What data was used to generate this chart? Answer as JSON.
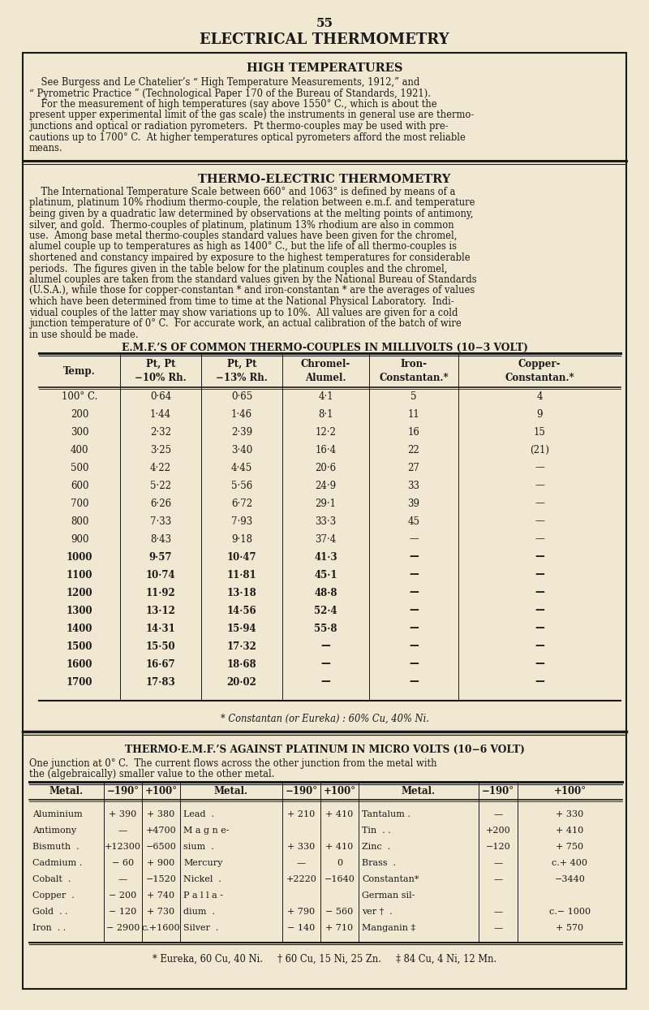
{
  "bg_color": "#f0e8d0",
  "page_num": "55",
  "page_title": "ELECTRICAL THERMOMETRY",
  "section1_title": "HIGH TEMPERATURES",
  "section2_title": "THERMO-ELECTRIC THERMOMETRY",
  "table1_title": "E.M.F.’S OF COMMON THERMO-COUPLES IN MILLIVOLTS (10−3 VOLT)",
  "table1_headers": [
    "Temp.",
    "Pt, Pt\n−10% Rh.",
    "Pt, Pt\n−13% Rh.",
    "Chromel-\nAlumel.",
    "Iron-\nConstantan.*",
    "Copper-\nConstantan.*"
  ],
  "table1_data": [
    [
      "100° C.",
      "0·64",
      "0·65",
      "4·1",
      "5",
      "4"
    ],
    [
      "200",
      "1·44",
      "1·46",
      "8·1",
      "11",
      "9"
    ],
    [
      "300",
      "2·32",
      "2·39",
      "12·2",
      "16",
      "15"
    ],
    [
      "400",
      "3·25",
      "3·40",
      "16·4",
      "22",
      "(21)"
    ],
    [
      "500",
      "4·22",
      "4·45",
      "20·6",
      "27",
      "—"
    ],
    [
      "600",
      "5·22",
      "5·56",
      "24·9",
      "33",
      "—"
    ],
    [
      "700",
      "6·26",
      "6·72",
      "29·1",
      "39",
      "—"
    ],
    [
      "800",
      "7·33",
      "7·93",
      "33·3",
      "45",
      "—"
    ],
    [
      "900",
      "8·43",
      "9·18",
      "37·4",
      "—",
      "—"
    ],
    [
      "1000",
      "9·57",
      "10·47",
      "41·3",
      "—",
      "—"
    ],
    [
      "1100",
      "10·74",
      "11·81",
      "45·1",
      "—",
      "—"
    ],
    [
      "1200",
      "11·92",
      "13·18",
      "48·8",
      "—",
      "—"
    ],
    [
      "1300",
      "13·12",
      "14·56",
      "52·4",
      "—",
      "—"
    ],
    [
      "1400",
      "14·31",
      "15·94",
      "55·8",
      "—",
      "—"
    ],
    [
      "1500",
      "15·50",
      "17·32",
      "—",
      "—",
      "—"
    ],
    [
      "1600",
      "16·67",
      "18·68",
      "—",
      "—",
      "—"
    ],
    [
      "1700",
      "17·83",
      "20·02",
      "—",
      "—",
      "—"
    ]
  ],
  "table1_footnote": "* Constantan (or Eureka) : 60% Cu, 40% Ni.",
  "table2_title": "THERMO·E.M.F.’S AGAINST PLATINUM IN MICRO VOLTS (10−6 VOLT)",
  "table2_subtitle1": "One junction at 0° C.  The current flows across the other junction from the metal with",
  "table2_subtitle2": "the (algebraically) smaller value to the other metal.",
  "table2_headers": [
    "Metal.",
    "−190°",
    "+100°",
    "Metal.",
    "−190°",
    "+100°",
    "Metal.",
    "−190°",
    "+100°"
  ],
  "table2_data": [
    [
      "Aluminium",
      "+ 390",
      "+ 380",
      "Lead  .",
      "+ 210",
      "+ 410",
      "Tantalum .",
      "—",
      "+ 330"
    ],
    [
      "Antimony",
      "—",
      "+4700",
      "M a g n e-",
      "",
      "",
      "Tin  . .",
      "+200",
      "+ 410"
    ],
    [
      "Bismuth  .",
      "+12300",
      "−6500",
      "sium  .",
      "+ 330",
      "+ 410",
      "Zinc  .",
      "−120",
      "+ 750"
    ],
    [
      "Cadmium .",
      "− 60",
      "+ 900",
      "Mercury",
      "—",
      "0",
      "Brass  .",
      "—",
      "c.+ 400"
    ],
    [
      "Cobalt  .",
      "—",
      "−1520",
      "Nickel  .",
      "+2220",
      "−1640",
      "Constantan*",
      "—",
      "−3440"
    ],
    [
      "Copper  .",
      "− 200",
      "+ 740",
      "P a l l a -",
      "",
      "",
      "German sil-",
      "",
      ""
    ],
    [
      "Gold  . .",
      "− 120",
      "+ 730",
      "dium  .",
      "+ 790",
      "− 560",
      "ver †  .",
      "—",
      "c.− 1000"
    ],
    [
      "Iron  . .",
      "− 2900",
      "c.+1600",
      "Silver  .",
      "− 140",
      "+ 710",
      "Manganin ‡",
      "—",
      "+ 570"
    ]
  ],
  "table2_footnote": "* Eureka, 60 Cu, 40 Ni.     † 60 Cu, 15 Ni, 25 Zn.     ‡ 84 Cu, 4 Ni, 12 Mn."
}
